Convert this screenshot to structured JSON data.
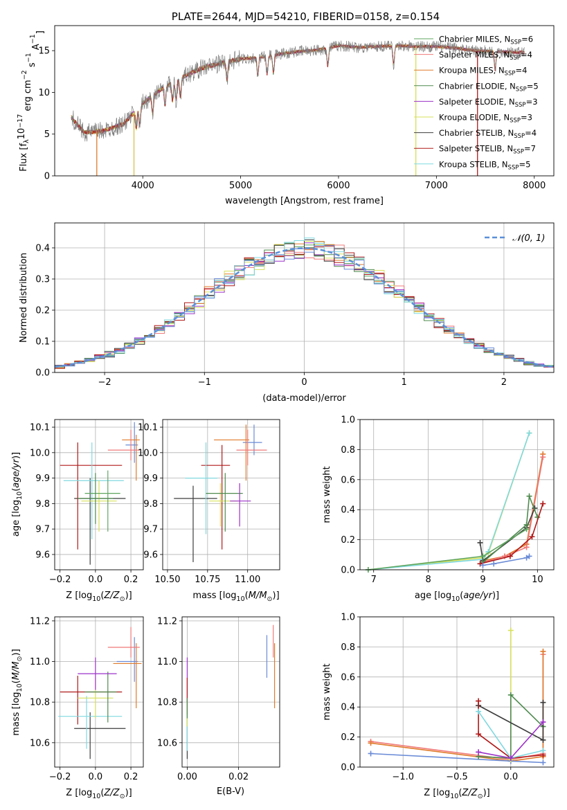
{
  "chart_data": [
    {
      "id": "spectrum",
      "type": "line",
      "title": "PLATE=2644, MJD=54210, FIBERID=0158, z=0.154",
      "xlabel": "wavelength [Angstrom, rest frame]",
      "ylabel": "Flux [f",
      "xlim": [
        3100,
        8200
      ],
      "ylim": [
        0,
        18
      ],
      "xticks": [
        4000,
        5000,
        6000,
        7000,
        8000
      ],
      "yticks": [
        0,
        5,
        10,
        15
      ],
      "grid": false,
      "legend": "top-right",
      "series": [
        {
          "name": "Chabrier MILES, N",
          "sub": "SSP",
          "suffix": "=6",
          "color": "#5fa55f"
        },
        {
          "name": "Salpeter MILES, N",
          "sub": "SSP",
          "suffix": "=4",
          "color": "#f07878"
        },
        {
          "name": "Kroupa MILES, N",
          "sub": "SSP",
          "suffix": "=4",
          "color": "#e07a2a"
        },
        {
          "name": "Chabrier ELODIE, N",
          "sub": "SSP",
          "suffix": "=5",
          "color": "#4e8a4e"
        },
        {
          "name": "Salpeter ELODIE, N",
          "sub": "SSP",
          "suffix": "=3",
          "color": "#9b30c8"
        },
        {
          "name": "Kroupa ELODIE, N",
          "sub": "SSP",
          "suffix": "=3",
          "color": "#d6e05a"
        },
        {
          "name": "Chabrier STELIB, N",
          "sub": "SSP",
          "suffix": "=4",
          "color": "#3c3c3c"
        },
        {
          "name": "Salpeter STELIB, N",
          "sub": "SSP",
          "suffix": "=7",
          "color": "#b01818"
        },
        {
          "name": "Kroupa STELIB, N",
          "sub": "SSP",
          "suffix": "=5",
          "color": "#7fd8e0"
        }
      ],
      "continuum": {
        "x": [
          3270,
          3400,
          3600,
          3800,
          4000,
          4200,
          4400,
          4600,
          4800,
          5000,
          5200,
          5400,
          5600,
          5800,
          6000,
          6200,
          6400,
          6600,
          6800,
          7000,
          7200,
          7400,
          7600,
          7800,
          7900
        ],
        "y": [
          7.0,
          5.2,
          5.4,
          6.2,
          8.7,
          10.5,
          11.8,
          12.9,
          13.5,
          14.0,
          14.2,
          14.6,
          14.9,
          15.1,
          15.6,
          15.4,
          15.5,
          15.6,
          15.5,
          15.5,
          15.3,
          15.0,
          14.9,
          14.8,
          14.8
        ]
      },
      "absorption_lines": [
        3934,
        3969,
        4101,
        4227,
        4304,
        4340,
        4384,
        4861,
        5175,
        5270,
        5335,
        5890,
        6563,
        7600
      ],
      "spikes": [
        {
          "x": 3530,
          "y": 0
        },
        {
          "x": 3910,
          "y": 0
        },
        {
          "x": 6790,
          "y": 0
        },
        {
          "x": 7420,
          "y": 0
        }
      ]
    },
    {
      "id": "residuals",
      "type": "line",
      "xlabel": "(data-model)/error",
      "ylabel": "Normed distribution",
      "xlim": [
        -2.5,
        2.5
      ],
      "ylim": [
        0,
        0.48
      ],
      "xticks": [
        -2,
        -1,
        0,
        1,
        2
      ],
      "yticks": [
        0.0,
        0.1,
        0.2,
        0.3,
        0.4
      ],
      "grid": true,
      "legend": "top-right",
      "gaussian_label": "𝒩(0, 1)",
      "gaussian_color": "#5b8fd8",
      "bin_width": 0.1,
      "series_colors": [
        "#5fa55f",
        "#f07878",
        "#e07a2a",
        "#4e8a4e",
        "#9b30c8",
        "#d6e05a",
        "#3c3c3c",
        "#b01818",
        "#7fd8e0",
        "#6a8bd6"
      ]
    },
    {
      "id": "age_vs_Z",
      "type": "scatter",
      "xlabel": "Z [log",
      "ylabel": "age  [log",
      "xlim": [
        -0.23,
        0.27
      ],
      "ylim": [
        9.54,
        10.13
      ],
      "xticks": [
        -0.2,
        0.0,
        0.2
      ],
      "yticks": [
        9.6,
        9.7,
        9.8,
        9.9,
        10.0,
        10.1
      ],
      "grid": true,
      "points": [
        {
          "x": 0.22,
          "y": 10.03,
          "xerr": [
            0.05,
            0.02
          ],
          "yerr": [
            0.07,
            0.09
          ],
          "color": "#6a8bd6"
        },
        {
          "x": 0.23,
          "y": 10.05,
          "xerr": [
            0.08,
            0.02
          ],
          "yerr": [
            0.16,
            0.02
          ],
          "color": "#e07a2a"
        },
        {
          "x": 0.2,
          "y": 10.01,
          "xerr": [
            0.13,
            0.05
          ],
          "yerr": [
            0.04,
            0.08
          ],
          "color": "#f07878"
        },
        {
          "x": -0.03,
          "y": 9.82,
          "xerr": [
            0.09,
            0.2
          ],
          "yerr": [
            0.26,
            0.08
          ],
          "color": "#3c3c3c"
        },
        {
          "x": -0.1,
          "y": 9.95,
          "xerr": [
            0.1,
            0.25
          ],
          "yerr": [
            0.33,
            0.09
          ],
          "color": "#b01818"
        },
        {
          "x": -0.02,
          "y": 9.89,
          "xerr": [
            0.16,
            0.18
          ],
          "yerr": [
            0.23,
            0.15
          ],
          "color": "#7fd8e0"
        },
        {
          "x": 0.02,
          "y": 9.81,
          "xerr": [
            0.1,
            0.1
          ],
          "yerr": [
            0.12,
            0.08
          ],
          "color": "#d6e05a"
        },
        {
          "x": 0.07,
          "y": 9.84,
          "xerr": [
            0.13,
            0.07
          ],
          "yerr": [
            0.15,
            0.09
          ],
          "color": "#5fa55f"
        },
        {
          "x": 0.0,
          "y": 9.82,
          "xerr": [
            0.1,
            0.1
          ],
          "yerr": [
            0.1,
            0.1
          ],
          "color": "#4e8a4e"
        }
      ]
    },
    {
      "id": "age_vs_mass",
      "type": "scatter",
      "xlabel": "mass [log",
      "ylabel": "",
      "xlim": [
        10.47,
        11.2
      ],
      "ylim": [
        9.54,
        10.13
      ],
      "xticks": [
        10.5,
        10.75,
        11.0
      ],
      "yticks": [
        9.6,
        9.7,
        9.8,
        9.9,
        10.0,
        10.1
      ],
      "grid": true,
      "points": [
        {
          "x": 11.04,
          "y": 10.04,
          "xerr": [
            0.07,
            0.05
          ],
          "yerr": [
            0.05,
            0.07
          ],
          "color": "#6a8bd6"
        },
        {
          "x": 10.99,
          "y": 10.05,
          "xerr": [
            0.2,
            0.02
          ],
          "yerr": [
            0.16,
            0.06
          ],
          "color": "#e07a2a"
        },
        {
          "x": 11.0,
          "y": 10.01,
          "xerr": [
            0.07,
            0.12
          ],
          "yerr": [
            0.06,
            0.08
          ],
          "color": "#f07878"
        },
        {
          "x": 10.66,
          "y": 9.82,
          "xerr": [
            0.12,
            0.15
          ],
          "yerr": [
            0.25,
            0.05
          ],
          "color": "#3c3c3c"
        },
        {
          "x": 10.84,
          "y": 9.95,
          "xerr": [
            0.13,
            0.05
          ],
          "yerr": [
            0.33,
            0.08
          ],
          "color": "#b01818"
        },
        {
          "x": 10.74,
          "y": 9.9,
          "xerr": [
            0.13,
            0.07
          ],
          "yerr": [
            0.22,
            0.14
          ],
          "color": "#7fd8e0"
        },
        {
          "x": 10.83,
          "y": 9.81,
          "xerr": [
            0.07,
            0.11
          ],
          "yerr": [
            0.1,
            0.07
          ],
          "color": "#d6e05a"
        },
        {
          "x": 10.86,
          "y": 9.84,
          "xerr": [
            0.12,
            0.11
          ],
          "yerr": [
            0.15,
            0.08
          ],
          "color": "#4e8a4e"
        },
        {
          "x": 10.95,
          "y": 9.81,
          "xerr": [
            0.06,
            0.07
          ],
          "yerr": [
            0.1,
            0.07
          ],
          "color": "#9b30c8"
        }
      ]
    },
    {
      "id": "massweight_vs_age",
      "type": "line",
      "xlabel": "age  [log",
      "ylabel": "mass weight",
      "xlim": [
        6.75,
        10.3
      ],
      "ylim": [
        0,
        1.0
      ],
      "xticks": [
        7,
        8,
        9,
        10
      ],
      "yticks": [
        0.0,
        0.2,
        0.4,
        0.6,
        0.8,
        1.0
      ],
      "grid": true,
      "series": [
        {
          "color": "#d6e05a",
          "x": [
            6.9,
            9.0,
            9.1,
            9.85
          ],
          "y": [
            0.0,
            0.08,
            0.11,
            0.91
          ]
        },
        {
          "color": "#7fd8e0",
          "x": [
            6.9,
            9.0,
            9.1,
            9.85
          ],
          "y": [
            0.0,
            0.07,
            0.12,
            0.91
          ]
        },
        {
          "color": "#e07a2a",
          "x": [
            9.0,
            9.4,
            9.8,
            10.1
          ],
          "y": [
            0.06,
            0.09,
            0.17,
            0.77
          ]
        },
        {
          "color": "#f07878",
          "x": [
            9.0,
            9.4,
            9.8,
            10.1
          ],
          "y": [
            0.05,
            0.09,
            0.15,
            0.75
          ]
        },
        {
          "color": "#3c3c3c",
          "x": [
            8.95,
            9.0,
            9.8,
            9.95
          ],
          "y": [
            0.18,
            0.06,
            0.28,
            0.41
          ]
        },
        {
          "color": "#4e8a4e",
          "x": [
            9.0,
            9.8,
            9.85,
            10.0
          ],
          "y": [
            0.05,
            0.3,
            0.49,
            0.35
          ]
        },
        {
          "color": "#b01818",
          "x": [
            8.95,
            9.5,
            9.9,
            10.1
          ],
          "y": [
            0.04,
            0.09,
            0.22,
            0.44
          ]
        },
        {
          "color": "#6a8bd6",
          "x": [
            9.0,
            9.2,
            9.8,
            9.85
          ],
          "y": [
            0.03,
            0.04,
            0.08,
            0.09
          ]
        },
        {
          "color": "#5fa55f",
          "x": [
            6.9,
            9.0,
            9.8
          ],
          "y": [
            0.0,
            0.09,
            0.27
          ]
        }
      ]
    },
    {
      "id": "mass_vs_Z",
      "type": "scatter",
      "xlabel": "Z [log",
      "ylabel": "mass [log",
      "xlim": [
        -0.23,
        0.27
      ],
      "ylim": [
        10.48,
        11.22
      ],
      "xticks": [
        -0.2,
        0.0,
        0.2
      ],
      "yticks": [
        10.6,
        10.8,
        11.0,
        11.2
      ],
      "grid": true,
      "points": [
        {
          "x": 0.22,
          "y": 11.0,
          "xerr": [
            0.1,
            0.02
          ],
          "yerr": [
            0.1,
            0.12
          ],
          "color": "#6a8bd6"
        },
        {
          "x": 0.23,
          "y": 10.99,
          "xerr": [
            0.13,
            0.03
          ],
          "yerr": [
            0.22,
            0.1
          ],
          "color": "#e07a2a"
        },
        {
          "x": 0.2,
          "y": 11.07,
          "xerr": [
            0.13,
            0.05
          ],
          "yerr": [
            0.05,
            0.1
          ],
          "color": "#f07878"
        },
        {
          "x": -0.03,
          "y": 10.67,
          "xerr": [
            0.09,
            0.2
          ],
          "yerr": [
            0.15,
            0.08
          ],
          "color": "#3c3c3c"
        },
        {
          "x": -0.1,
          "y": 10.85,
          "xerr": [
            0.1,
            0.25
          ],
          "yerr": [
            0.16,
            0.08
          ],
          "color": "#b01818"
        },
        {
          "x": -0.05,
          "y": 10.73,
          "xerr": [
            0.16,
            0.2
          ],
          "yerr": [
            0.16,
            0.1
          ],
          "color": "#7fd8e0"
        },
        {
          "x": 0.0,
          "y": 10.82,
          "xerr": [
            0.1,
            0.1
          ],
          "yerr": [
            0.1,
            0.1
          ],
          "color": "#d6e05a"
        },
        {
          "x": 0.07,
          "y": 10.85,
          "xerr": [
            0.13,
            0.05
          ],
          "yerr": [
            0.15,
            0.1
          ],
          "color": "#4e8a4e"
        },
        {
          "x": 0.0,
          "y": 10.94,
          "xerr": [
            0.1,
            0.12
          ],
          "yerr": [
            0.08,
            0.08
          ],
          "color": "#9b30c8"
        }
      ]
    },
    {
      "id": "mass_vs_ebv",
      "type": "scatter",
      "xlabel": "E(B-V)",
      "ylabel": "",
      "xlim": [
        -0.002,
        0.036
      ],
      "ylim": [
        10.48,
        11.22
      ],
      "xticks": [
        0.0,
        0.02
      ],
      "yticks": [
        10.6,
        10.8,
        11.0,
        11.2
      ],
      "grid": true,
      "points": [
        {
          "x": 0.0,
          "y": 10.63,
          "xerr": [
            0,
            0
          ],
          "yerr": [
            0.11,
            0.18
          ],
          "color": "#3c3c3c"
        },
        {
          "x": 0.0,
          "y": 10.86,
          "xerr": [
            0,
            0
          ],
          "yerr": [
            0.05,
            0.16
          ],
          "color": "#9b30c8"
        },
        {
          "x": 0.0,
          "y": 10.84,
          "xerr": [
            0,
            0
          ],
          "yerr": [
            0.1,
            0.08
          ],
          "color": "#b01818"
        },
        {
          "x": 0.0,
          "y": 10.7,
          "xerr": [
            0,
            0
          ],
          "yerr": [
            0.14,
            0.1
          ],
          "color": "#7fd8e0"
        },
        {
          "x": 0.0,
          "y": 10.74,
          "xerr": [
            0,
            0
          ],
          "yerr": [
            0.06,
            0.06
          ],
          "color": "#d6e05a"
        },
        {
          "x": 0.0,
          "y": 10.78,
          "xerr": [
            0,
            0
          ],
          "yerr": [
            0.06,
            0.04
          ],
          "color": "#4e8a4e"
        },
        {
          "x": 0.031,
          "y": 11.03,
          "xerr": [
            0,
            0
          ],
          "yerr": [
            0.11,
            0.1
          ],
          "color": "#6a8bd6"
        },
        {
          "x": 0.034,
          "y": 10.93,
          "xerr": [
            0,
            0
          ],
          "yerr": [
            0.16,
            0.16
          ],
          "color": "#e07a2a"
        },
        {
          "x": 0.0335,
          "y": 11.1,
          "xerr": [
            0,
            0
          ],
          "yerr": [
            0.08,
            0.08
          ],
          "color": "#f07878"
        }
      ]
    },
    {
      "id": "massweight_vs_Z",
      "type": "line",
      "xlabel": "Z [log",
      "ylabel": "mass weight",
      "xlim": [
        -1.4,
        0.4
      ],
      "ylim": [
        0,
        1.0
      ],
      "xticks": [
        -1.0,
        -0.5,
        0.0
      ],
      "yticks": [
        0.0,
        0.2,
        0.4,
        0.6,
        0.8,
        1.0
      ],
      "grid": true,
      "series": [
        {
          "color": "#f07878",
          "x": [
            -1.3,
            0.0,
            0.3,
            0.3
          ],
          "y": [
            0.17,
            0.05,
            0.09,
            0.75
          ]
        },
        {
          "color": "#e07a2a",
          "x": [
            -1.3,
            0.0,
            0.3,
            0.3
          ],
          "y": [
            0.16,
            0.04,
            0.07,
            0.77
          ]
        },
        {
          "color": "#6a8bd6",
          "x": [
            -1.3,
            0.0,
            0.3
          ],
          "y": [
            0.09,
            0.04,
            0.03
          ]
        },
        {
          "color": "#d6e05a",
          "x": [
            0.0,
            0.0
          ],
          "y": [
            0.05,
            0.91
          ]
        },
        {
          "color": "#4e8a4e",
          "x": [
            -0.3,
            0.0,
            0.0,
            0.3
          ],
          "y": [
            0.07,
            0.06,
            0.48,
            0.27
          ]
        },
        {
          "color": "#3c3c3c",
          "x": [
            -0.3,
            0.3,
            0.3
          ],
          "y": [
            0.41,
            0.18,
            0.43
          ]
        },
        {
          "color": "#b01818",
          "x": [
            -0.3,
            -0.3,
            0.0,
            0.3
          ],
          "y": [
            0.44,
            0.22,
            0.06,
            0.08
          ]
        },
        {
          "color": "#7fd8e0",
          "x": [
            -0.3,
            0.0,
            0.3
          ],
          "y": [
            0.37,
            0.06,
            0.11
          ]
        },
        {
          "color": "#9b30c8",
          "x": [
            -0.3,
            0.0,
            0.3
          ],
          "y": [
            0.1,
            0.06,
            0.3
          ]
        }
      ]
    }
  ]
}
